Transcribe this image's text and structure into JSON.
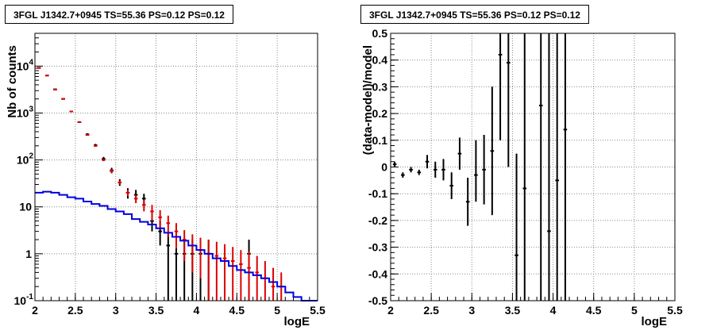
{
  "colors": {
    "data": "#000000",
    "model_total": "#dd0000",
    "source_model": "#0000dd",
    "grid": "#888888"
  },
  "chart_data": [
    {
      "type": "scatter",
      "title": "3FGL J1342.7+0945 TS=55.36 PS=0.12 PS=0.12",
      "xlabel": "logE",
      "ylabel": "Nb of counts",
      "xlim": [
        2,
        5.5
      ],
      "ylim": [
        0.1,
        50000
      ],
      "yscale": "log",
      "grid": true,
      "x_ticks": [
        "2",
        "2.5",
        "3",
        "3.5",
        "4",
        "4.5",
        "5",
        "5.5"
      ],
      "y_ticks": [
        {
          "value": 0.1,
          "label": "10",
          "exp": "-1"
        },
        {
          "value": 1,
          "label": "1",
          "exp": ""
        },
        {
          "value": 10,
          "label": "10",
          "exp": ""
        },
        {
          "value": 100,
          "label": "10",
          "exp": "2"
        },
        {
          "value": 1000,
          "label": "10",
          "exp": "3"
        },
        {
          "value": 10000,
          "label": "10",
          "exp": "4"
        }
      ],
      "bin_width": 0.1,
      "series": [
        {
          "style": "errorbar",
          "color": "#000000",
          "x": [
            2.05,
            2.15,
            2.25,
            2.35,
            2.45,
            2.55,
            2.65,
            2.75,
            2.85,
            2.95,
            3.05,
            3.15,
            3.25,
            3.35,
            3.45,
            3.55,
            3.65,
            3.75,
            3.85,
            3.95,
            4.05,
            4.15,
            4.65
          ],
          "y": [
            9200,
            6300,
            3200,
            2000,
            1080,
            640,
            350,
            205,
            105,
            60,
            33,
            20,
            18,
            15,
            5,
            3,
            1.5,
            1,
            1,
            1,
            1,
            1,
            1
          ],
          "ylo": [
            9100,
            6200,
            3140,
            1950,
            1040,
            615,
            330,
            191,
            95,
            52,
            28,
            15,
            14,
            11,
            3,
            1.5,
            0.1,
            0.1,
            0.1,
            0.1,
            0.1,
            0.1,
            0.1
          ],
          "yhi": [
            9300,
            6400,
            3260,
            2050,
            1120,
            665,
            370,
            220,
            116,
            68,
            39,
            25,
            23,
            19,
            7,
            5,
            2.7,
            2,
            2,
            2,
            2,
            2,
            2
          ]
        },
        {
          "style": "errorbar",
          "color": "#dd0000",
          "x": [
            2.05,
            2.15,
            2.25,
            2.35,
            2.45,
            2.55,
            2.65,
            2.75,
            2.85,
            2.95,
            3.05,
            3.15,
            3.25,
            3.35,
            3.45,
            3.55,
            3.65,
            3.75,
            3.85,
            3.95,
            4.05,
            4.15,
            4.25,
            4.35,
            4.45,
            4.55,
            4.65,
            4.75,
            4.85,
            4.95,
            5.05
          ],
          "y": [
            9100,
            6300,
            3150,
            2000,
            1080,
            640,
            340,
            200,
            100,
            58,
            33,
            20,
            15,
            11,
            8,
            6,
            4.5,
            3,
            2,
            1.5,
            1.2,
            1,
            0.9,
            0.8,
            0.7,
            0.6,
            0.5,
            0.4,
            0.3,
            0.2,
            0.2
          ],
          "ylo": [
            9100,
            6300,
            3150,
            2000,
            1080,
            640,
            340,
            200,
            100,
            53,
            30,
            17,
            12,
            8,
            5,
            3.5,
            2.3,
            1.3,
            0.7,
            0.4,
            0.3,
            0.1,
            0.1,
            0.1,
            0.1,
            0.1,
            0.1,
            0.1,
            0.1,
            0.1,
            0.1
          ],
          "yhi": [
            9100,
            6300,
            3150,
            2000,
            1080,
            640,
            340,
            200,
            100,
            63,
            36,
            23,
            18,
            14,
            11,
            8.5,
            6.5,
            4.5,
            3.2,
            2.6,
            2.2,
            2,
            1.8,
            1.6,
            1.4,
            1.2,
            1.1,
            0.9,
            0.7,
            0.5,
            0.4
          ]
        },
        {
          "style": "step",
          "color": "#0000dd",
          "x": [
            2.05,
            2.15,
            2.25,
            2.35,
            2.45,
            2.55,
            2.65,
            2.75,
            2.85,
            2.95,
            3.05,
            3.15,
            3.25,
            3.35,
            3.45,
            3.55,
            3.65,
            3.75,
            3.85,
            3.95,
            4.05,
            4.15,
            4.25,
            4.35,
            4.45,
            4.55,
            4.65,
            4.75,
            4.85,
            4.95,
            5.05,
            5.15,
            5.25,
            5.35,
            5.45
          ],
          "y": [
            20,
            21,
            20,
            18,
            16,
            15,
            13,
            11.5,
            10.5,
            9,
            8,
            7,
            5.5,
            4.8,
            4.2,
            3.5,
            2.8,
            2.3,
            1.9,
            1.5,
            1.2,
            1,
            0.8,
            0.7,
            0.55,
            0.45,
            0.4,
            0.35,
            0.3,
            0.25,
            0.2,
            0.15,
            0.12,
            0.1,
            0.1
          ]
        }
      ]
    },
    {
      "type": "scatter",
      "title": "3FGL J1342.7+0945 TS=55.36 PS=0.12 PS=0.12",
      "xlabel": "logE",
      "ylabel": "(data-model)/model",
      "xlim": [
        2,
        5.5
      ],
      "ylim": [
        -0.5,
        0.5
      ],
      "grid": true,
      "x_ticks": [
        "2",
        "2.5",
        "3",
        "3.5",
        "4",
        "4.5",
        "5",
        "5.5"
      ],
      "y_ticks": [
        "-0.5",
        "-0.4",
        "-0.3",
        "-0.2",
        "-0.1",
        "0",
        "0.1",
        "0.2",
        "0.3",
        "0.4",
        "0.5"
      ],
      "bin_width": 0.1,
      "series": [
        {
          "style": "errorbar",
          "color": "#000000",
          "x": [
            2.05,
            2.15,
            2.25,
            2.35,
            2.45,
            2.55,
            2.65,
            2.75,
            2.85,
            2.95,
            3.05,
            3.15,
            3.25,
            3.35,
            3.45,
            3.55,
            3.65,
            3.85,
            3.95,
            4.05,
            4.15
          ],
          "y": [
            0.01,
            -0.03,
            -0.01,
            -0.02,
            0.02,
            -0.01,
            -0.01,
            -0.07,
            0.05,
            -0.13,
            -0.03,
            -0.01,
            0.06,
            0.42,
            0.39,
            -0.33,
            -0.08,
            0.23,
            -0.24,
            -0.05,
            0.14
          ],
          "ylo": [
            0.0,
            -0.04,
            -0.02,
            -0.03,
            -0.005,
            -0.04,
            -0.05,
            -0.12,
            -0.01,
            -0.22,
            -0.13,
            -0.14,
            -0.18,
            0.1,
            0.0,
            -0.5,
            -0.5,
            -0.5,
            -0.5,
            -0.5,
            -0.5
          ],
          "yhi": [
            0.02,
            -0.02,
            0.0,
            -0.01,
            0.045,
            0.02,
            0.03,
            -0.02,
            0.11,
            -0.04,
            0.1,
            0.12,
            0.3,
            0.5,
            0.5,
            0.05,
            0.5,
            0.5,
            0.5,
            0.5,
            0.5
          ]
        }
      ]
    }
  ]
}
